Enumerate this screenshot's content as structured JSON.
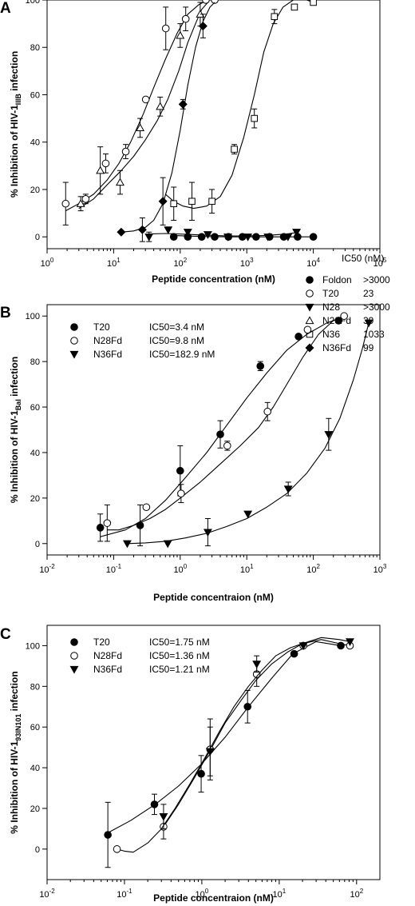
{
  "chart_data": [
    {
      "panel": "A",
      "type": "scatter",
      "xscale": "log",
      "xlim": [
        1,
        100000
      ],
      "ylim": [
        -5,
        100
      ],
      "x_ticks": [
        1,
        10,
        100,
        1000,
        10000,
        100000
      ],
      "x_tick_labels": [
        [
          "10",
          "0"
        ],
        [
          "10",
          "1"
        ],
        [
          "10",
          "2"
        ],
        [
          "10",
          "3"
        ],
        [
          "10",
          "4"
        ],
        [
          "10",
          "5"
        ]
      ],
      "y_ticks": [
        0,
        20,
        40,
        60,
        80,
        100
      ],
      "xlabel": "Peptide concentration (nM)",
      "ylabel_parts": [
        "% Inhibition of HIV-1",
        "IIIB",
        " infection"
      ],
      "legend_header": "IC50 (nM)",
      "series": [
        {
          "name": "Foldon",
          "ic50": ">3000",
          "marker": "circle-filled",
          "x": [
            80,
            130,
            210,
            330,
            530,
            860,
            1380,
            2200,
            3600,
            5800,
            10000
          ],
          "y": [
            0,
            0,
            0,
            0,
            0,
            0,
            0,
            0,
            0,
            0,
            0
          ],
          "err": [
            1,
            1,
            1,
            1,
            1,
            1,
            1,
            1,
            1,
            1,
            1
          ],
          "curve_x": [
            75,
            150,
            300,
            600,
            1200,
            2400,
            5000,
            10000
          ],
          "curve_y": [
            0.6,
            0.3,
            0.1,
            0,
            0,
            0,
            0,
            0
          ]
        },
        {
          "name": "T20",
          "ic50": "23",
          "marker": "circle-open",
          "x": [
            1.9,
            3.8,
            7.6,
            15.2,
            30.4,
            60.7,
            121,
            243,
            330
          ],
          "y": [
            14,
            16,
            31,
            36,
            58,
            88,
            92,
            100,
            100
          ],
          "err": [
            9,
            2,
            4,
            3,
            1,
            9,
            5,
            1,
            1
          ],
          "curve_x": [
            1.9,
            3,
            5,
            8,
            12,
            18,
            28,
            40,
            60,
            90,
            130,
            190,
            260,
            330
          ],
          "curve_y": [
            11,
            14,
            18,
            24,
            31,
            40,
            52,
            63,
            75,
            86,
            94,
            98,
            100,
            100
          ]
        },
        {
          "name": "N28",
          "ic50": ">3000",
          "marker": "triangle-down-filled",
          "x": [
            34,
            66,
            130,
            260,
            520,
            1040,
            2080,
            4160,
            5600
          ],
          "y": [
            0,
            3,
            2,
            1,
            0,
            0,
            0,
            0,
            2
          ],
          "err": [
            2,
            1,
            1,
            1,
            1,
            1,
            1,
            1,
            1
          ],
          "curve_x": [
            34,
            60,
            120,
            250,
            500,
            1000,
            2000,
            4000,
            5600
          ],
          "curve_y": [
            1.2,
            1.4,
            1.1,
            0.7,
            0.4,
            0.4,
            0.6,
            1.2,
            1.8
          ]
        },
        {
          "name": "N28Fd",
          "ic50": "39",
          "marker": "triangle-up-open",
          "x": [
            3.2,
            6.3,
            12.5,
            25,
            50,
            100,
            200
          ],
          "y": [
            14,
            28,
            23,
            46,
            55,
            85,
            94
          ],
          "err": [
            3,
            10,
            5,
            4,
            4,
            5,
            5
          ],
          "curve_x": [
            3,
            5,
            8,
            13,
            20,
            30,
            45,
            65,
            95,
            130,
            170,
            210,
            260
          ],
          "curve_y": [
            12,
            16,
            22,
            28,
            34,
            41,
            49,
            58,
            70,
            82,
            90,
            96,
            99
          ]
        },
        {
          "name": "N36",
          "ic50": "1033",
          "marker": "square-open",
          "x": [
            80,
            150,
            300,
            650,
            1300,
            2600,
            5200,
            10000
          ],
          "y": [
            14,
            15,
            15,
            37,
            50,
            93,
            97,
            99
          ],
          "err": [
            7,
            8,
            5,
            2,
            4,
            3,
            1,
            1
          ],
          "curve_x": [
            60,
            80,
            110,
            160,
            250,
            400,
            600,
            900,
            1300,
            1800,
            2500,
            3500,
            5000,
            6500,
            8000,
            10000
          ],
          "curve_y": [
            18,
            15,
            13,
            12,
            13,
            17,
            26,
            42,
            60,
            78,
            90,
            97,
            100,
            101,
            100,
            99
          ]
        },
        {
          "name": "N36Fd",
          "ic50": "99",
          "marker": "diamond-filled",
          "x": [
            13,
            27,
            55,
            110,
            220
          ],
          "y": [
            2,
            3,
            15,
            56,
            89
          ],
          "err": [
            1,
            5,
            10,
            2,
            5
          ],
          "curve_x": [
            13,
            20,
            30,
            40,
            55,
            75,
            100,
            130,
            170,
            220,
            280,
            330
          ],
          "curve_y": [
            2,
            2.5,
            4,
            7,
            14,
            27,
            45,
            64,
            80,
            91,
            97,
            99
          ]
        }
      ]
    },
    {
      "panel": "B",
      "type": "scatter",
      "xscale": "log",
      "xlim": [
        0.01,
        1000
      ],
      "ylim": [
        -5,
        105
      ],
      "x_ticks": [
        0.01,
        0.1,
        1,
        10,
        100,
        1000
      ],
      "x_tick_labels": [
        [
          "10",
          "-2"
        ],
        [
          "10",
          "-1"
        ],
        [
          "10",
          "0"
        ],
        [
          "10",
          "1"
        ],
        [
          "10",
          "2"
        ],
        [
          "10",
          "3"
        ]
      ],
      "y_ticks": [
        0,
        20,
        40,
        60,
        80,
        100
      ],
      "xlabel": "Peptide concentraion (nM)",
      "ylabel_parts": [
        "% Inhibition of HIV-1",
        "Bal",
        " infection"
      ],
      "series": [
        {
          "name": "T20",
          "label": "IC50=3.4 nM",
          "marker": "circle-filled",
          "x": [
            0.063,
            0.25,
            1,
            4,
            16,
            60,
            240
          ],
          "y": [
            7,
            8,
            32,
            48,
            78,
            91,
            98
          ],
          "err": [
            6,
            9,
            11,
            6,
            2,
            1,
            1
          ],
          "curve_x": [
            0.063,
            0.15,
            0.3,
            0.6,
            1.2,
            2.5,
            5,
            10,
            20,
            40,
            80,
            160,
            250
          ],
          "curve_y": [
            3,
            6,
            11,
            19,
            29,
            40,
            52,
            64,
            75,
            85,
            92,
            97,
            99
          ]
        },
        {
          "name": "N28Fd",
          "label": "IC50=9.8 nM",
          "marker": "circle-open",
          "x": [
            0.08,
            0.31,
            1.03,
            5.1,
            20.5,
            82,
            290
          ],
          "y": [
            9,
            16,
            22,
            43,
            58,
            94,
            100
          ],
          "err": [
            8,
            1,
            4,
            2,
            4,
            1,
            1
          ],
          "curve_x": [
            0.08,
            0.12,
            0.2,
            0.35,
            0.6,
            1,
            2,
            4,
            8,
            15,
            25,
            40,
            70,
            120,
            200,
            290
          ],
          "curve_y": [
            6,
            6,
            8,
            11,
            15,
            20,
            27,
            35,
            43,
            51,
            60,
            70,
            82,
            92,
            98,
            100
          ]
        },
        {
          "name": "N36Fd",
          "label": "IC50=182.9 nM",
          "marker": "triangle-down-filled",
          "x": [
            0.16,
            0.65,
            2.6,
            10.4,
            42,
            170,
            680
          ],
          "y": [
            0,
            0,
            5,
            13,
            24,
            48,
            97
          ],
          "err": [
            1,
            1,
            6,
            1,
            3,
            7,
            1
          ],
          "curve_x": [
            0.16,
            0.3,
            0.6,
            1.2,
            2.5,
            5,
            10,
            20,
            40,
            80,
            150,
            250,
            400,
            550,
            680
          ],
          "curve_y": [
            0,
            0.3,
            1,
            2.5,
            4.5,
            7.5,
            11,
            16,
            22,
            31,
            42,
            55,
            72,
            86,
            97
          ]
        }
      ]
    },
    {
      "panel": "C",
      "type": "scatter",
      "xscale": "log",
      "xlim": [
        0.01,
        200
      ],
      "ylim": [
        -15,
        110
      ],
      "x_ticks": [
        0.01,
        0.1,
        1,
        10,
        100
      ],
      "x_tick_labels": [
        [
          "10",
          "-2"
        ],
        [
          "10",
          "-1"
        ],
        [
          "10",
          "0"
        ],
        [
          "10",
          "1"
        ],
        [
          "10",
          "2"
        ]
      ],
      "y_ticks": [
        0,
        20,
        40,
        60,
        80,
        100
      ],
      "xlabel": "Peptide concentraion (nM)",
      "ylabel_parts": [
        "% Inhibition of HIV-1",
        "93IN101",
        " infection"
      ],
      "series": [
        {
          "name": "T20",
          "label": "IC50=1.75 nM",
          "marker": "circle-filled",
          "x": [
            0.061,
            0.244,
            0.98,
            3.9,
            15.6,
            62.5
          ],
          "y": [
            7,
            22,
            37,
            70,
            96,
            100
          ],
          "err": [
            16,
            5,
            9,
            8,
            1,
            1
          ],
          "curve_x": [
            0.061,
            0.12,
            0.25,
            0.5,
            1,
            2,
            4,
            8,
            15,
            30,
            62.5
          ],
          "curve_y": [
            8,
            14,
            22,
            31,
            42,
            55,
            70,
            84,
            96,
            102,
            100
          ]
        },
        {
          "name": "N28Fd",
          "label": "IC50=1.36 nM",
          "marker": "circle-open",
          "x": [
            0.08,
            0.32,
            1.28,
            5.12,
            20.5,
            82
          ],
          "y": [
            0,
            11,
            49,
            86,
            100,
            100
          ],
          "err": [
            1,
            6,
            15,
            6,
            1,
            1
          ],
          "curve_x": [
            0.08,
            0.1,
            0.13,
            0.2,
            0.32,
            0.5,
            0.8,
            1.3,
            2,
            3.2,
            5,
            8,
            13,
            20,
            35,
            60,
            82
          ],
          "curve_y": [
            0,
            -1,
            -1.5,
            3,
            11,
            22,
            35,
            49,
            62,
            73,
            83,
            91,
            97,
            101,
            103,
            101,
            100
          ]
        },
        {
          "name": "N36Fd",
          "label": "IC50=1.21 nM",
          "marker": "triangle-down-filled",
          "x": [
            0.32,
            1.28,
            5.12,
            20.5,
            82
          ],
          "y": [
            16,
            48,
            91,
            100,
            102
          ],
          "err": [
            6,
            12,
            4,
            1,
            1
          ],
          "curve_x": [
            0.3,
            0.45,
            0.7,
            1.1,
            1.7,
            2.6,
            4,
            6,
            9,
            14,
            20,
            35,
            60,
            82
          ],
          "curve_y": [
            10,
            20,
            32,
            45,
            58,
            70,
            80,
            88,
            95,
            99,
            101,
            104,
            103,
            102
          ]
        }
      ]
    }
  ]
}
